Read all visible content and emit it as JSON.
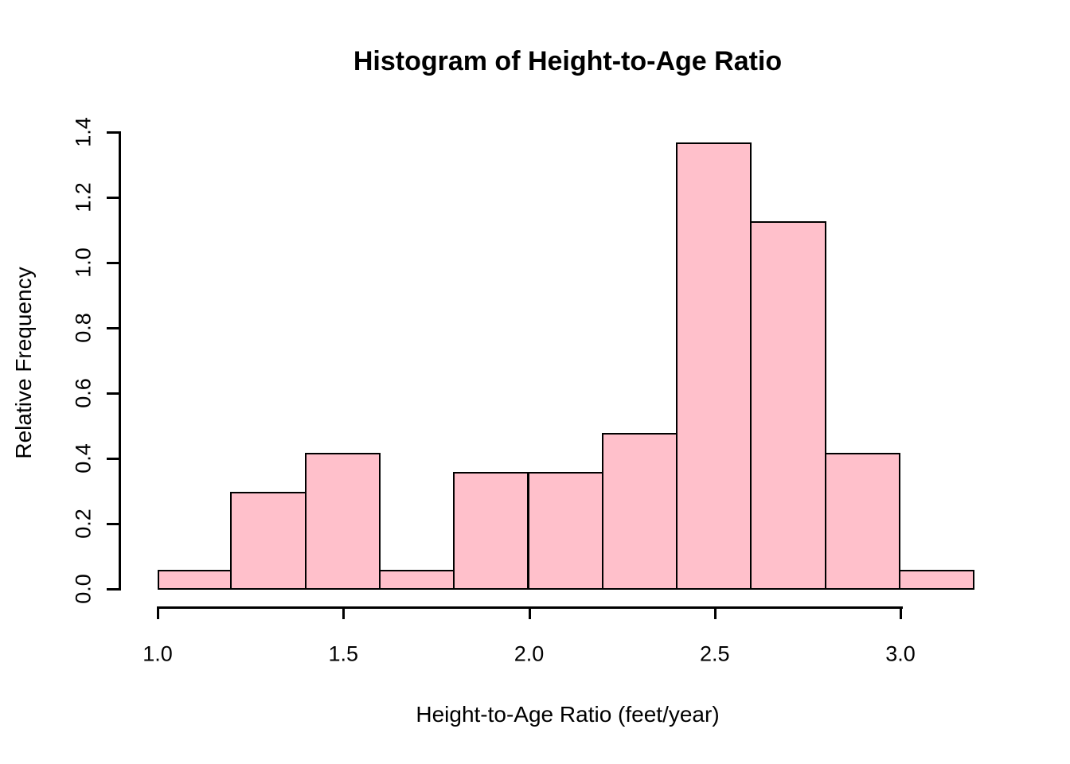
{
  "chart_data": {
    "type": "bar",
    "subtype": "histogram",
    "title": "Histogram of Height-to-Age Ratio",
    "xlabel": "Height-to-Age Ratio (feet/year)",
    "ylabel": "Relative Frequency",
    "bin_edges": [
      1.0,
      1.2,
      1.4,
      1.6,
      1.8,
      2.0,
      2.2,
      2.4,
      2.6,
      2.8,
      3.0,
      3.2
    ],
    "bin_width": 0.2,
    "values": [
      0.06,
      0.3,
      0.42,
      0.06,
      0.36,
      0.36,
      0.48,
      1.37,
      1.13,
      0.42,
      0.06
    ],
    "x_ticks": [
      "1.0",
      "1.5",
      "2.0",
      "2.5",
      "3.0"
    ],
    "x_tick_values": [
      1.0,
      1.5,
      2.0,
      2.5,
      3.0
    ],
    "y_ticks": [
      "0.0",
      "0.2",
      "0.4",
      "0.6",
      "0.8",
      "1.0",
      "1.2",
      "1.4"
    ],
    "y_tick_values": [
      0.0,
      0.2,
      0.4,
      0.6,
      0.8,
      1.0,
      1.2,
      1.4
    ],
    "xlim": [
      1.0,
      3.2
    ],
    "ylim": [
      0.0,
      1.4
    ],
    "grid": false,
    "legend": "none",
    "bar_fill_color": "#FFC0CB",
    "bar_border_color": "#000000",
    "axis_color": "#000000",
    "background_color": "#FFFFFF"
  }
}
